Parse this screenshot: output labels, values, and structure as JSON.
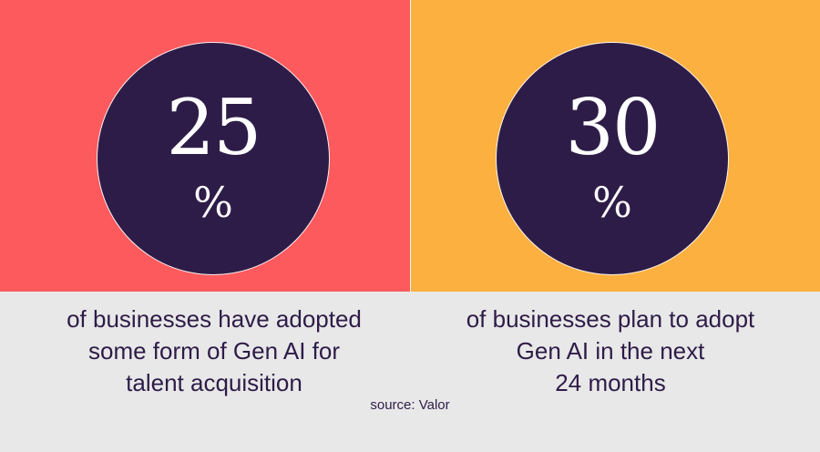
{
  "colors": {
    "left_panel": "#fd5a5e",
    "right_panel": "#fbb040",
    "circle": "#2e1c48",
    "caption_background": "#e8e8e8",
    "text_dark": "#2e1c48",
    "text_light": "#ffffff"
  },
  "stats": [
    {
      "number": "25",
      "percent_sign": "%",
      "caption_lines": [
        "of businesses have adopted",
        "some form of Gen AI for",
        "talent acquisition"
      ]
    },
    {
      "number": "30",
      "percent_sign": "%",
      "caption_lines": [
        "of businesses plan to adopt",
        "Gen AI in the next",
        "24 months"
      ]
    }
  ],
  "source": "source: Valor"
}
